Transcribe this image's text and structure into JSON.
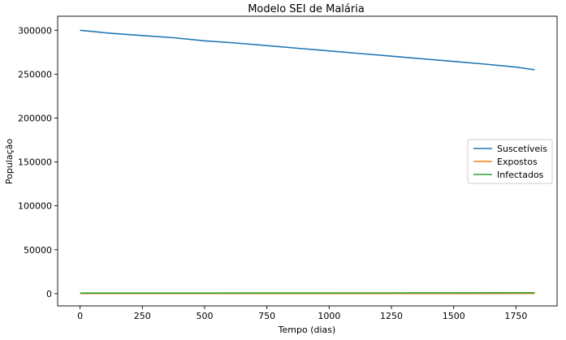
{
  "chart_data": {
    "type": "line",
    "title": "Modelo SEI de Malária",
    "xlabel": "Tempo (dias)",
    "ylabel": "População",
    "xlim": [
      -90,
      1915
    ],
    "ylim": [
      -14000,
      316000
    ],
    "xticks": [
      0,
      250,
      500,
      750,
      1000,
      1250,
      1500,
      1750
    ],
    "yticks": [
      0,
      50000,
      100000,
      150000,
      200000,
      250000,
      300000
    ],
    "grid": false,
    "legend_position": "center-right",
    "series": [
      {
        "name": "Suscetíveis",
        "color": "#1f77b4",
        "x": [
          0,
          125,
          250,
          375,
          500,
          625,
          750,
          875,
          1000,
          1125,
          1250,
          1375,
          1500,
          1625,
          1750,
          1825
        ],
        "y": [
          300000,
          296500,
          294000,
          291500,
          288000,
          285500,
          282500,
          279500,
          276500,
          273500,
          270500,
          267500,
          264500,
          261500,
          258000,
          255000
        ]
      },
      {
        "name": "Expostos",
        "color": "#ff7f0e",
        "x": [
          0,
          250,
          500,
          750,
          1000,
          1250,
          1500,
          1750,
          1825
        ],
        "y": [
          100,
          110,
          120,
          130,
          140,
          160,
          180,
          210,
          220
        ]
      },
      {
        "name": "Infectados",
        "color": "#2ca02c",
        "x": [
          0,
          250,
          500,
          750,
          1000,
          1250,
          1500,
          1750,
          1825
        ],
        "y": [
          600,
          620,
          650,
          690,
          730,
          780,
          850,
          950,
          1000
        ]
      }
    ]
  }
}
